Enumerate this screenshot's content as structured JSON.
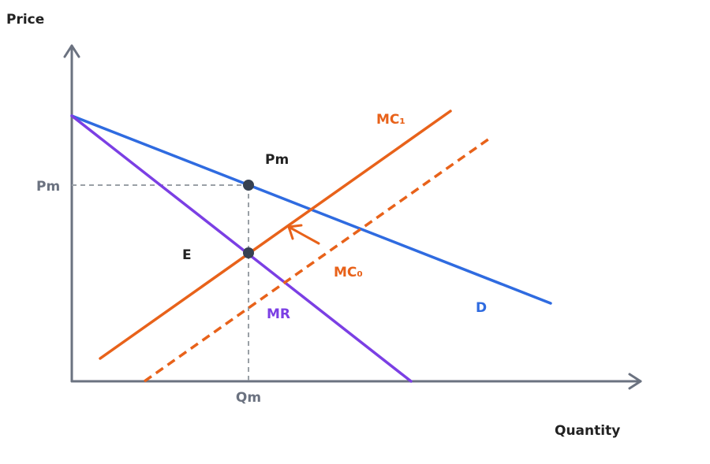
{
  "axes": {
    "y_label": "Price",
    "x_label": "Quantity",
    "y_tick": "Pm",
    "x_tick": "Qm"
  },
  "curves": {
    "demand": "D",
    "marginal_revenue": "MR",
    "mc_new": "MC₁",
    "mc_old": "MC₀"
  },
  "points": {
    "monopoly_price": "Pm",
    "equilibrium": "E"
  }
}
